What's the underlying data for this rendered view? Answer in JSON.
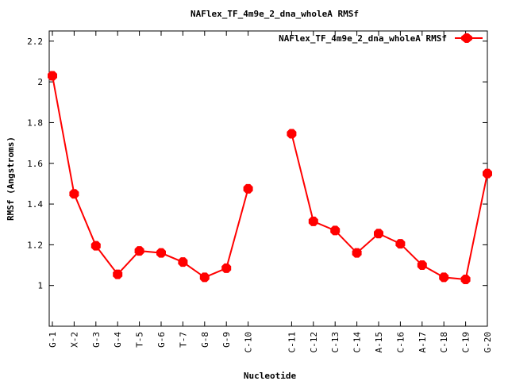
{
  "chart_data": {
    "type": "line",
    "title": "NAFlex_TF_4m9e_2_dna_wholeA RMSf",
    "xlabel": "Nucleotide",
    "ylabel": "RMSf (Angstroms)",
    "ylim": [
      0.8,
      2.25
    ],
    "yticks": [
      "1",
      "1.2",
      "1.4",
      "1.6",
      "1.8",
      "2",
      "2.2"
    ],
    "x_positions": [
      1,
      2,
      3,
      4,
      5,
      6,
      7,
      8,
      9,
      10,
      12,
      13,
      14,
      15,
      16,
      17,
      18,
      19,
      20,
      21
    ],
    "xlim": [
      1,
      21
    ],
    "categories": [
      "G-1",
      "X-2",
      "G-3",
      "G-4",
      "T-5",
      "G-6",
      "T-7",
      "G-8",
      "G-9",
      "C-10",
      "C-11",
      "C-12",
      "C-13",
      "C-14",
      "A-15",
      "C-16",
      "A-17",
      "C-18",
      "C-19",
      "G-20"
    ],
    "series": [
      {
        "name": "NAFlex_TF_4m9e_2_dna_wholeA RMSf",
        "color": "#ff0000",
        "segments": [
          [
            2.03,
            1.45,
            1.195,
            1.055,
            1.17,
            1.16,
            1.115,
            1.04,
            1.085,
            1.475
          ],
          [
            1.745,
            1.315,
            1.27,
            1.16,
            1.255,
            1.205,
            1.1,
            1.04,
            1.03,
            1.55
          ]
        ]
      }
    ],
    "legend": "top-right",
    "grid": false
  }
}
